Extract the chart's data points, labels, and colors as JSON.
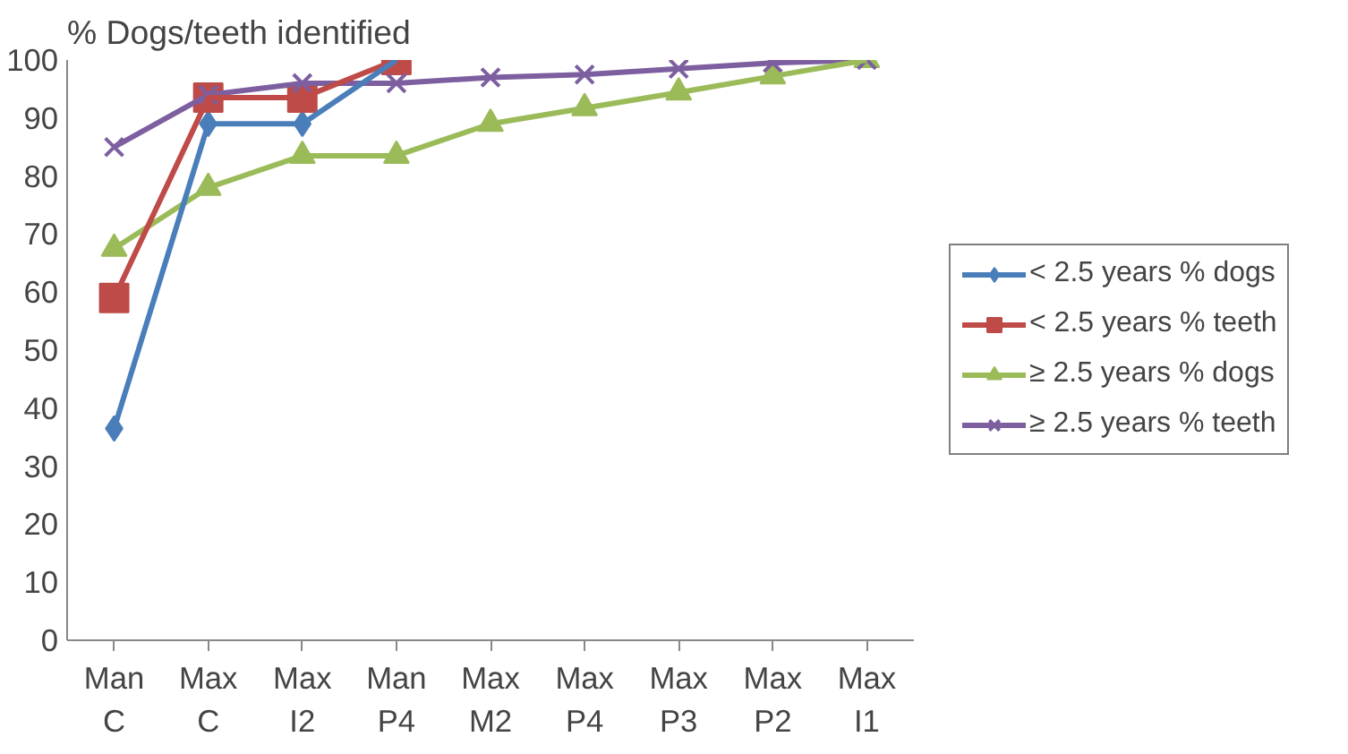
{
  "chart_data": {
    "type": "line",
    "ylabel": "% Dogs/teeth identified",
    "categories": [
      "Man\nC",
      "Max\nC",
      "Max\nI2",
      "Man\nP4",
      "Max\nM2",
      "Max\nP4",
      "Max\nP3",
      "Max\nP2",
      "Max\nI1"
    ],
    "ylim": [
      0,
      100
    ],
    "yticks": [
      0,
      10,
      20,
      30,
      40,
      50,
      60,
      70,
      80,
      90,
      100
    ],
    "grid": false,
    "legend": "right",
    "series": [
      {
        "name": "< 2.5 years % dogs",
        "color": "#4a7ebb",
        "marker": "diamond",
        "values": [
          36.5,
          89,
          89,
          100,
          null,
          null,
          null,
          null,
          null
        ]
      },
      {
        "name": "< 2.5 years % teeth",
        "color": "#be4b48",
        "marker": "square",
        "values": [
          59,
          93.5,
          93.5,
          100,
          null,
          null,
          null,
          null,
          null
        ]
      },
      {
        "name": "≥ 2.5 years % dogs",
        "color": "#9bbb59",
        "marker": "triangle",
        "values": [
          67.5,
          78,
          83.5,
          83.5,
          89,
          91.7,
          94.4,
          97.2,
          100
        ]
      },
      {
        "name": "≥ 2.5 years % teeth",
        "color": "#7d5fa0",
        "marker": "x",
        "values": [
          85,
          94,
          96,
          96,
          97,
          97.5,
          98.5,
          99.5,
          100
        ]
      }
    ]
  }
}
